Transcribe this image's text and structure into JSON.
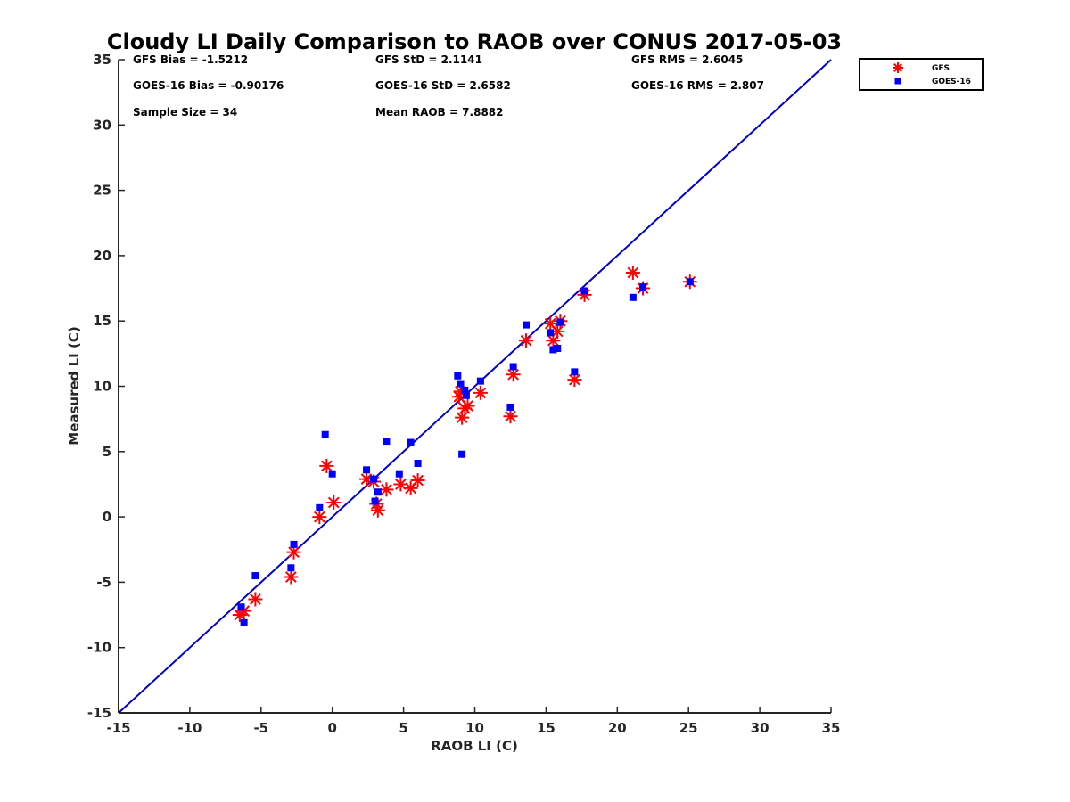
{
  "chart_data": {
    "type": "scatter",
    "title": "Cloudy LI Daily Comparison to RAOB over CONUS 2017-05-03",
    "xlabel": "RAOB LI (C)",
    "ylabel": "Measured LI (C)",
    "xlim": [
      -15,
      35
    ],
    "ylim": [
      -15,
      35
    ],
    "xticks": [
      "-15",
      "-10",
      "-5",
      "0",
      "5",
      "10",
      "15",
      "20",
      "25",
      "30",
      "35"
    ],
    "yticks": [
      "-15",
      "-10",
      "-5",
      "0",
      "5",
      "10",
      "15",
      "20",
      "25",
      "30",
      "35"
    ],
    "grid": false,
    "legend_position": "top-right",
    "reference_line": {
      "x": [
        -15,
        35
      ],
      "y": [
        -15,
        35
      ],
      "color": "#0000cc"
    },
    "stats": [
      "GFS Bias = -1.5212",
      "GFS StD = 2.1141",
      "GFS RMS = 2.6045",
      "GOES-16 Bias = -0.90176",
      "GOES-16 StD = 2.6582",
      "GOES-16 RMS = 2.807",
      "Sample Size = 34",
      "Mean RAOB = 7.8882"
    ],
    "series": [
      {
        "name": "GFS",
        "marker": "asterisk",
        "color": "#ff0000",
        "x": [
          -6.5,
          -6.2,
          -5.4,
          -2.9,
          -2.7,
          -0.9,
          -0.4,
          0.1,
          2.4,
          2.9,
          3.1,
          3.2,
          3.8,
          4.8,
          5.5,
          6.0,
          8.9,
          9.0,
          9.1,
          9.3,
          9.5,
          10.4,
          12.5,
          12.7,
          13.6,
          15.3,
          15.5,
          15.8,
          16.0,
          17.0,
          17.7,
          21.1,
          21.8,
          25.1
        ],
        "y": [
          -7.5,
          -7.2,
          -6.3,
          -4.6,
          -2.7,
          0.0,
          3.9,
          1.1,
          2.9,
          2.7,
          1.0,
          0.5,
          2.1,
          2.5,
          2.2,
          2.8,
          9.2,
          9.6,
          7.6,
          8.3,
          8.5,
          9.5,
          7.7,
          10.9,
          13.5,
          14.8,
          13.5,
          14.2,
          15.0,
          10.5,
          17.0,
          18.7,
          17.5,
          18.0
        ]
      },
      {
        "name": "GOES-16",
        "marker": "square",
        "color": "#0000ff",
        "x": [
          -6.4,
          -6.2,
          -5.4,
          -2.9,
          -2.7,
          -0.9,
          -0.5,
          0.0,
          2.4,
          2.9,
          3.0,
          3.2,
          3.8,
          4.7,
          5.5,
          6.0,
          8.8,
          9.0,
          9.1,
          9.3,
          9.4,
          10.4,
          12.5,
          12.7,
          13.6,
          15.3,
          15.5,
          15.8,
          16.0,
          17.0,
          17.7,
          21.1,
          21.8,
          25.1
        ],
        "y": [
          -6.9,
          -8.1,
          -4.5,
          -3.9,
          -2.1,
          0.7,
          6.3,
          3.3,
          3.6,
          2.9,
          1.2,
          1.9,
          5.8,
          3.3,
          5.7,
          4.1,
          10.8,
          10.2,
          4.8,
          9.7,
          9.3,
          10.4,
          8.4,
          11.5,
          14.7,
          14.1,
          12.8,
          12.9,
          14.9,
          11.1,
          17.3,
          16.8,
          17.6,
          18.0
        ]
      }
    ]
  }
}
